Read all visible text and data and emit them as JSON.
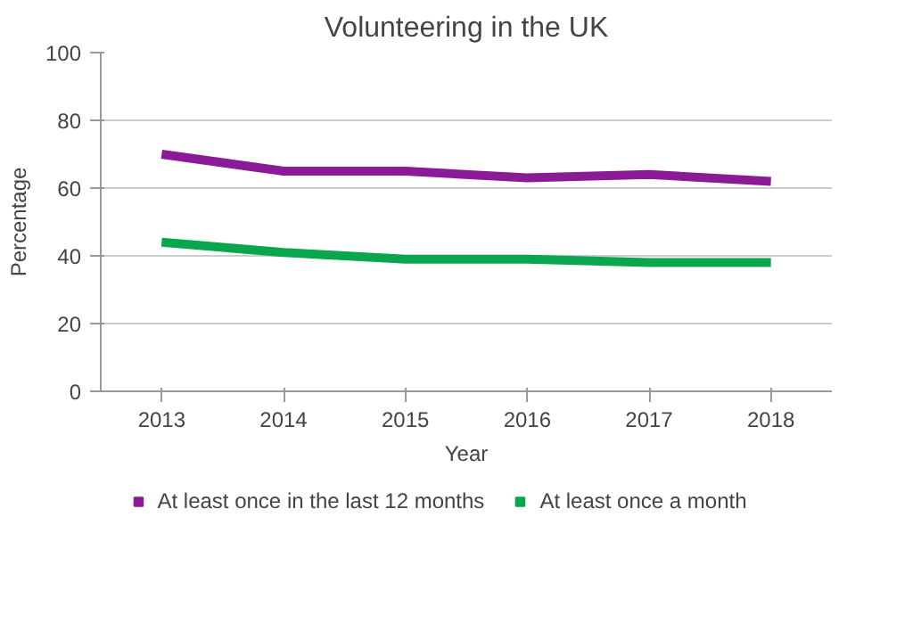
{
  "chart_data": {
    "type": "line",
    "title": "Volunteering in the UK",
    "xlabel": "Year",
    "ylabel": "Percentage",
    "categories": [
      "2013",
      "2014",
      "2015",
      "2016",
      "2017",
      "2018"
    ],
    "series": [
      {
        "name": "At least once in the last 12 months",
        "color": "#8b1a96",
        "values": [
          70,
          65,
          65,
          63,
          64,
          62
        ]
      },
      {
        "name": "At least once a month",
        "color": "#0aa64e",
        "values": [
          44,
          41,
          39,
          39,
          38,
          38
        ]
      }
    ],
    "ylim": [
      0,
      100
    ],
    "yticks": [
      0,
      20,
      40,
      60,
      80,
      100
    ],
    "grid": "y",
    "legend": "bottom",
    "marker": "none",
    "line_style": "solid"
  }
}
